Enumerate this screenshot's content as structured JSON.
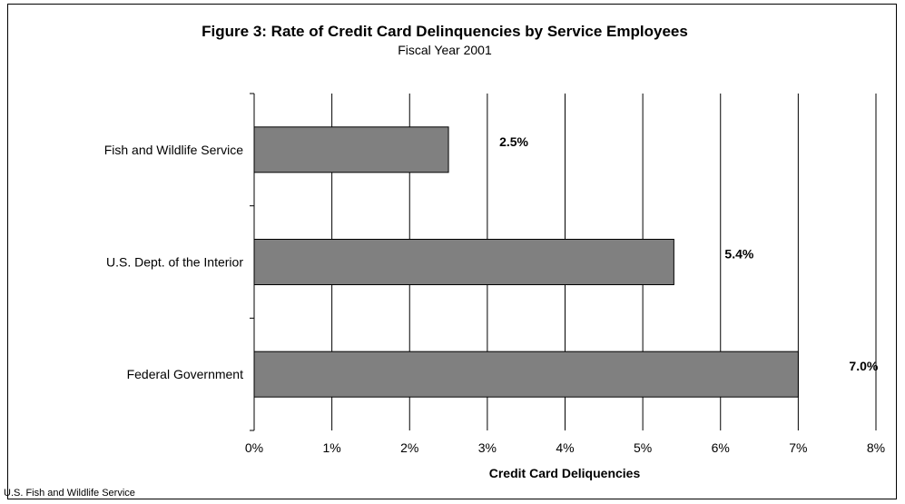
{
  "chart_data": {
    "type": "bar",
    "orientation": "horizontal",
    "title": "Figure 3: Rate of Credit Card Delinquencies by Service Employees",
    "subtitle": "Fiscal Year 2001",
    "xlabel": "Credit Card Deliquencies",
    "ylabel": "",
    "categories": [
      "Fish and Wildlife Service",
      "U.S. Dept. of the Interior",
      "Federal Government"
    ],
    "values": [
      2.5,
      5.4,
      7.0
    ],
    "value_labels": [
      "2.5%",
      "5.4%",
      "7.0%"
    ],
    "xlim": [
      0,
      8
    ],
    "x_ticks": [
      0,
      1,
      2,
      3,
      4,
      5,
      6,
      7,
      8
    ],
    "x_tick_labels": [
      "0%",
      "1%",
      "2%",
      "3%",
      "4%",
      "5%",
      "6%",
      "7%",
      "8%"
    ],
    "grid": "vertical",
    "legend": "none",
    "bar_color": "#808080",
    "footer": "U.S. Fish and Wildlife Service"
  }
}
